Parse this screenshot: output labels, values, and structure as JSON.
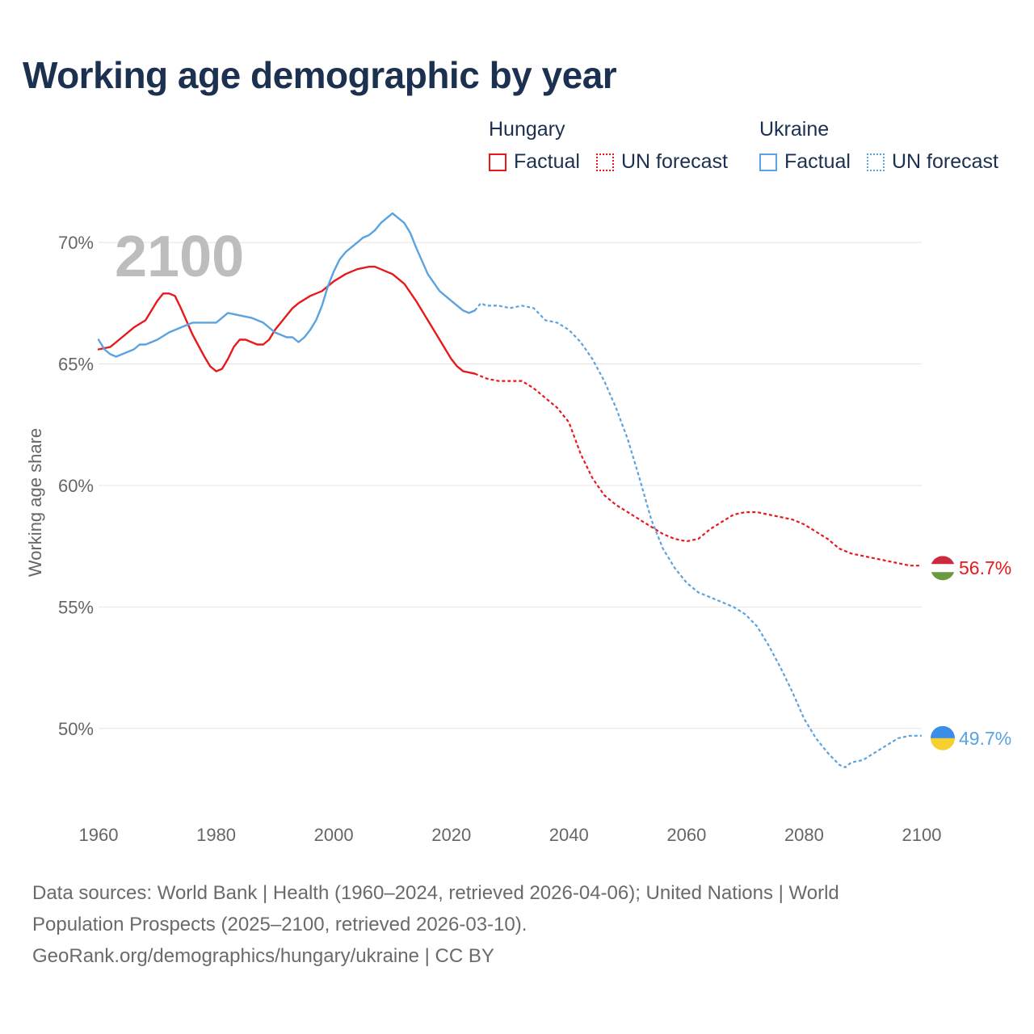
{
  "chart_data": {
    "type": "line",
    "title": "Working age demographic by year",
    "xlabel": "",
    "ylabel": "Working age share",
    "xlim": [
      1960,
      2100
    ],
    "ylim": [
      47,
      72
    ],
    "x_ticks": [
      1960,
      1980,
      2000,
      2020,
      2040,
      2060,
      2080,
      2100
    ],
    "y_ticks": [
      50,
      55,
      60,
      65,
      70
    ],
    "y_tick_labels": [
      "50%",
      "55%",
      "60%",
      "65%",
      "70%"
    ],
    "year_label": "2100",
    "legend": {
      "groups": [
        {
          "title": "Hungary",
          "items": [
            {
              "label": "Factual",
              "style": "solid",
              "color": "#e8191c"
            },
            {
              "label": "UN forecast",
              "style": "dotted",
              "color": "#e8191c"
            }
          ]
        },
        {
          "title": "Ukraine",
          "items": [
            {
              "label": "Factual",
              "style": "solid",
              "color": "#5ba3e0"
            },
            {
              "label": "UN forecast",
              "style": "dotted",
              "color": "#5ba3e0"
            }
          ]
        }
      ]
    },
    "series": [
      {
        "name": "Hungary",
        "color": "#e8191c",
        "end_label": "56.7%",
        "factual": {
          "x": [
            1960,
            1962,
            1964,
            1966,
            1968,
            1970,
            1971,
            1972,
            1973,
            1974,
            1976,
            1978,
            1979,
            1980,
            1981,
            1982,
            1983,
            1984,
            1985,
            1986,
            1987,
            1988,
            1989,
            1990,
            1992,
            1993,
            1994,
            1996,
            1998,
            2000,
            2002,
            2004,
            2006,
            2007,
            2008,
            2009,
            2010,
            2011,
            2012,
            2014,
            2016,
            2018,
            2020,
            2021,
            2022,
            2024
          ],
          "y": [
            65.6,
            65.7,
            66.1,
            66.5,
            66.8,
            67.6,
            67.9,
            67.9,
            67.8,
            67.3,
            66.2,
            65.3,
            64.9,
            64.7,
            64.8,
            65.2,
            65.7,
            66.0,
            66.0,
            65.9,
            65.8,
            65.8,
            66.0,
            66.4,
            67.0,
            67.3,
            67.5,
            67.8,
            68.0,
            68.4,
            68.7,
            68.9,
            69.0,
            69.0,
            68.9,
            68.8,
            68.7,
            68.5,
            68.3,
            67.6,
            66.8,
            66.0,
            65.2,
            64.9,
            64.7,
            64.6
          ]
        },
        "forecast": {
          "x": [
            2024,
            2026,
            2028,
            2032,
            2034,
            2036,
            2038,
            2040,
            2042,
            2044,
            2046,
            2048,
            2050,
            2052,
            2054,
            2056,
            2058,
            2060,
            2062,
            2064,
            2066,
            2068,
            2070,
            2072,
            2074,
            2076,
            2078,
            2080,
            2082,
            2084,
            2086,
            2088,
            2090,
            2092,
            2094,
            2096,
            2098,
            2100
          ],
          "y": [
            64.6,
            64.4,
            64.3,
            64.3,
            64.0,
            63.6,
            63.2,
            62.6,
            61.3,
            60.3,
            59.6,
            59.2,
            58.9,
            58.6,
            58.3,
            58.0,
            57.8,
            57.7,
            57.8,
            58.2,
            58.5,
            58.8,
            58.9,
            58.9,
            58.8,
            58.7,
            58.6,
            58.4,
            58.1,
            57.8,
            57.4,
            57.2,
            57.1,
            57.0,
            56.9,
            56.8,
            56.7,
            56.7
          ]
        }
      },
      {
        "name": "Ukraine",
        "color": "#5ba3e0",
        "end_label": "49.7%",
        "factual": {
          "x": [
            1960,
            1961,
            1962,
            1963,
            1964,
            1966,
            1967,
            1968,
            1970,
            1972,
            1974,
            1976,
            1978,
            1980,
            1982,
            1984,
            1986,
            1988,
            1990,
            1992,
            1993,
            1994,
            1995,
            1996,
            1997,
            1998,
            1999,
            2000,
            2001,
            2002,
            2003,
            2004,
            2005,
            2006,
            2007,
            2008,
            2009,
            2010,
            2011,
            2012,
            2013,
            2014,
            2016,
            2018,
            2020,
            2021,
            2022,
            2023,
            2024
          ],
          "y": [
            66.0,
            65.6,
            65.4,
            65.3,
            65.4,
            65.6,
            65.8,
            65.8,
            66.0,
            66.3,
            66.5,
            66.7,
            66.7,
            66.7,
            67.1,
            67.0,
            66.9,
            66.7,
            66.3,
            66.1,
            66.1,
            65.9,
            66.1,
            66.4,
            66.8,
            67.4,
            68.2,
            68.8,
            69.3,
            69.6,
            69.8,
            70.0,
            70.2,
            70.3,
            70.5,
            70.8,
            71.0,
            71.2,
            71.0,
            70.8,
            70.4,
            69.8,
            68.7,
            68.0,
            67.6,
            67.4,
            67.2,
            67.1,
            67.2
          ]
        },
        "forecast": {
          "x": [
            2024,
            2025,
            2026,
            2028,
            2030,
            2032,
            2034,
            2036,
            2038,
            2040,
            2042,
            2044,
            2046,
            2048,
            2050,
            2052,
            2054,
            2056,
            2058,
            2060,
            2062,
            2064,
            2066,
            2068,
            2070,
            2072,
            2074,
            2076,
            2078,
            2080,
            2082,
            2084,
            2086,
            2087,
            2088,
            2090,
            2092,
            2094,
            2096,
            2098,
            2100
          ],
          "y": [
            67.2,
            67.5,
            67.4,
            67.4,
            67.3,
            67.4,
            67.3,
            66.8,
            66.7,
            66.4,
            65.9,
            65.2,
            64.3,
            63.2,
            61.9,
            60.3,
            58.6,
            57.4,
            56.6,
            56.0,
            55.6,
            55.4,
            55.2,
            55.0,
            54.7,
            54.2,
            53.4,
            52.5,
            51.5,
            50.4,
            49.6,
            49.0,
            48.5,
            48.4,
            48.6,
            48.7,
            49.0,
            49.3,
            49.6,
            49.7,
            49.7
          ]
        }
      }
    ],
    "footer": {
      "line1": "Data sources: World Bank | Health (1960–2024, retrieved 2026-04-06); United Nations | World",
      "line2": "Population Prospects (2025–2100, retrieved 2026-03-10).",
      "line3": "GeoRank.org/demographics/hungary/ukraine | CC BY"
    }
  }
}
